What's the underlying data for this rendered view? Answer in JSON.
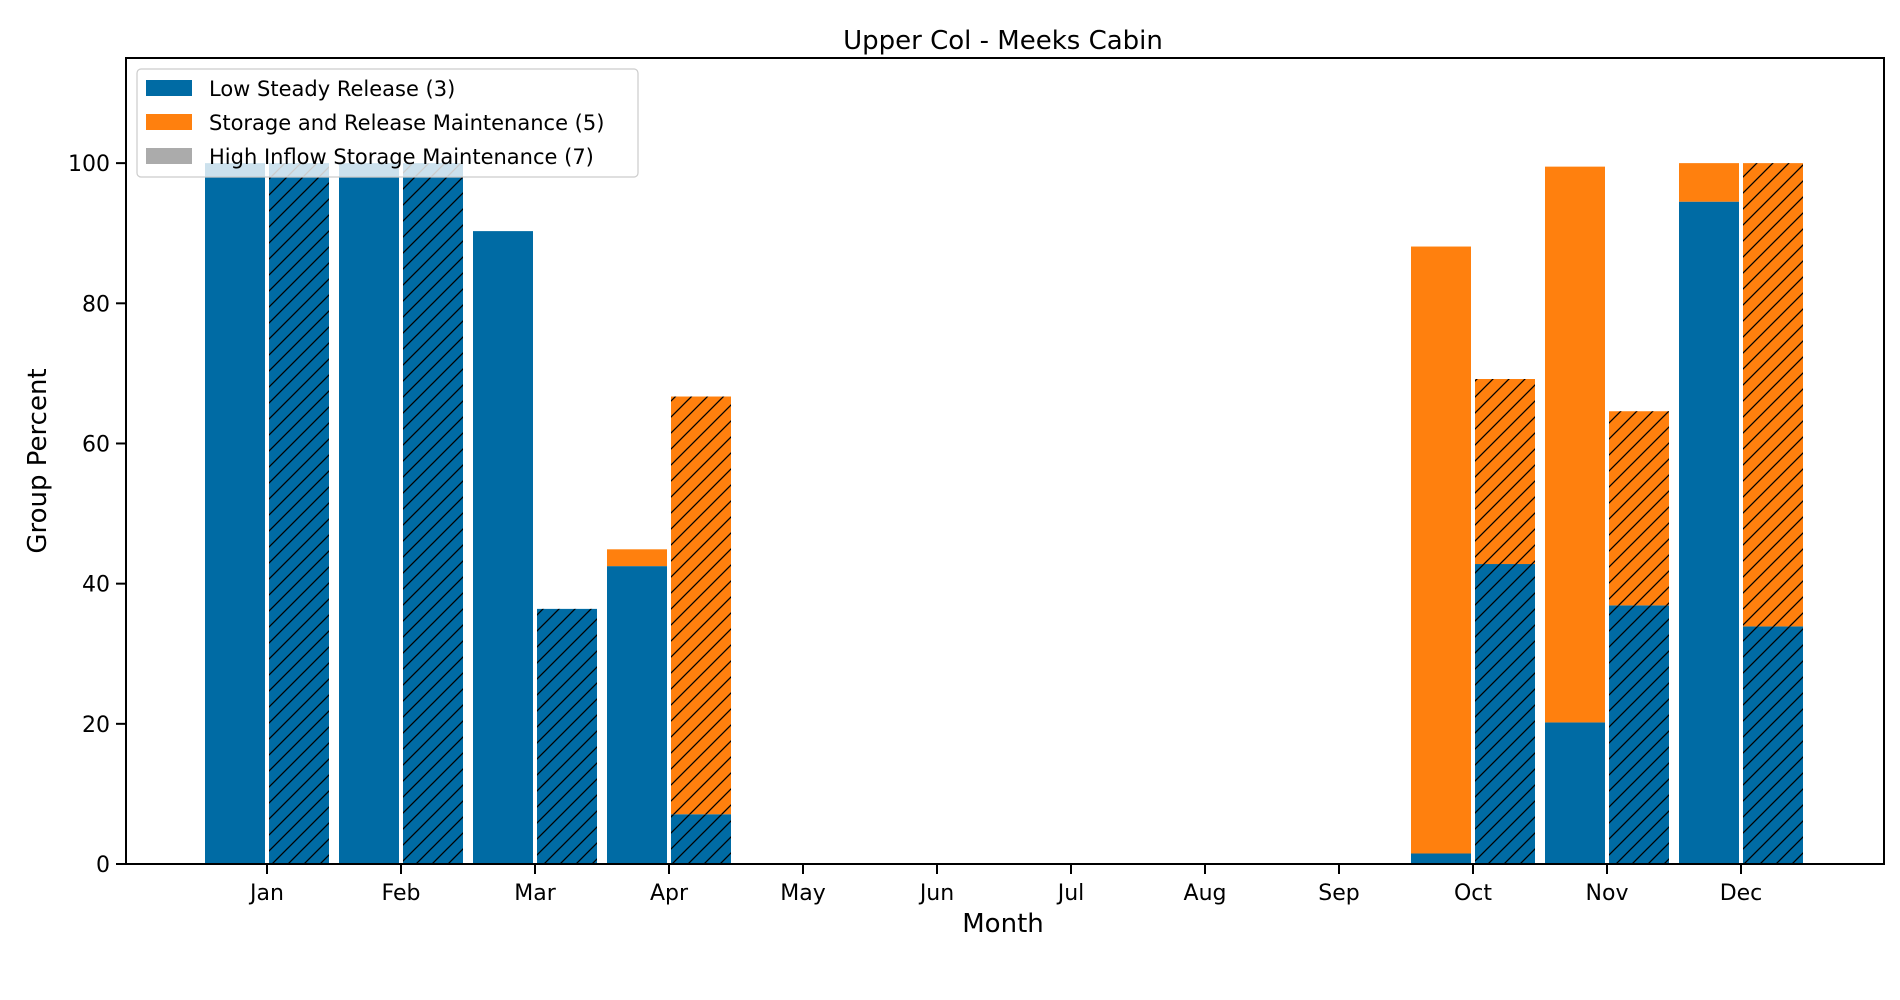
{
  "chart_data": {
    "type": "bar",
    "stacked": true,
    "title": "Upper Col - Meeks Cabin",
    "xlabel": "Month",
    "ylabel": "Group Percent",
    "ylim": [
      0,
      115
    ],
    "yticks": [
      0,
      20,
      40,
      60,
      80,
      100
    ],
    "categories": [
      "Jan",
      "Feb",
      "Mar",
      "Apr",
      "May",
      "Jun",
      "Jul",
      "Aug",
      "Sep",
      "Oct",
      "Nov",
      "Dec"
    ],
    "legend_position": "top-left",
    "grid": false,
    "series": [
      {
        "name": "Low Steady Release (3)",
        "color": "#006ba4"
      },
      {
        "name": "Storage and Release Maintenance (5)",
        "color": "#ff800e"
      },
      {
        "name": "High Inflow Storage Maintenance (7)",
        "color": "#ababab"
      }
    ],
    "bar_groups": [
      {
        "pattern": "solid",
        "values": [
          [
            100,
            100,
            90.3,
            42.5,
            0,
            0,
            0,
            0,
            0,
            1.5,
            20.2,
            94.5
          ],
          [
            0,
            0,
            0,
            2.4,
            0,
            0,
            0,
            0,
            0,
            86.6,
            79.3,
            5.5
          ],
          [
            0,
            0,
            0,
            0,
            0,
            0,
            0,
            0,
            0,
            0,
            0,
            0
          ]
        ]
      },
      {
        "pattern": "hatched",
        "values": [
          [
            100,
            100,
            36.4,
            7.1,
            0,
            0,
            0,
            0,
            0,
            42.8,
            36.9,
            33.9
          ],
          [
            0,
            0,
            0,
            59.6,
            0,
            0,
            0,
            0,
            0,
            26.4,
            27.7,
            66.1
          ],
          [
            0,
            0,
            0,
            0,
            0,
            0,
            0,
            0,
            0,
            0,
            0,
            0
          ]
        ]
      }
    ]
  }
}
